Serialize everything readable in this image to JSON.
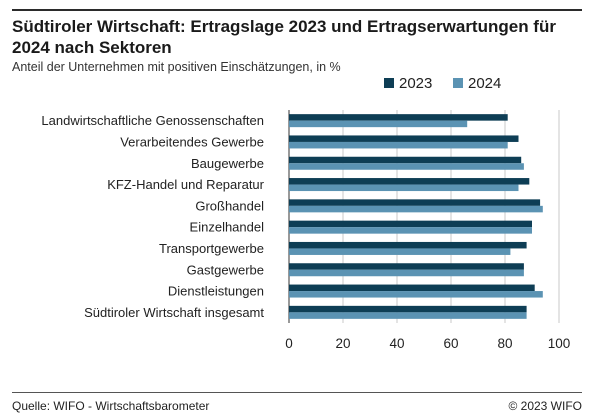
{
  "header": {
    "title": "Südtiroler Wirtschaft: Ertragslage 2023 und Ertragserwartungen für 2024 nach Sektoren",
    "subtitle": "Anteil der Unternehmen mit positiven Einschätzungen, in %"
  },
  "footer": {
    "source": "Quelle: WIFO - Wirtschaftsbarometer",
    "copyright": "© 2023 WIFO"
  },
  "colors": {
    "series_2023": "#0e3e55",
    "series_2024": "#5b93b3",
    "grid": "#c8c8c8",
    "axis": "#333333"
  },
  "chart_data": {
    "type": "bar",
    "orientation": "horizontal",
    "categories": [
      "Landwirtschaftliche Genossenschaften",
      "Verarbeitendes Gewerbe",
      "Baugewerbe",
      "KFZ-Handel und Reparatur",
      "Großhandel",
      "Einzelhandel",
      "Transportgewerbe",
      "Gastgewerbe",
      "Dienstleistungen",
      "Südtiroler Wirtschaft insgesamt"
    ],
    "series": [
      {
        "name": "2023",
        "values": [
          81,
          85,
          86,
          89,
          93,
          90,
          88,
          87,
          91,
          88
        ]
      },
      {
        "name": "2024",
        "values": [
          66,
          81,
          87,
          85,
          94,
          90,
          82,
          87,
          94,
          88
        ]
      }
    ],
    "xlim": [
      0,
      100
    ],
    "xticks": [
      0,
      20,
      40,
      60,
      80,
      100
    ],
    "grid": true,
    "legend": "top-right"
  }
}
